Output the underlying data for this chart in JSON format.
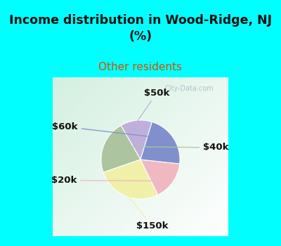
{
  "title": "Income distribution in Wood-Ridge, NJ\n(%)",
  "subtitle": "Other residents",
  "title_color": "#111111",
  "subtitle_color": "#cc5500",
  "bg_cyan": "#00ffff",
  "bg_chart_color": "#d4edd8",
  "slices": [
    {
      "label": "$50k",
      "value": 13,
      "color": "#c0aedd"
    },
    {
      "label": "$40k",
      "value": 22,
      "color": "#adc4a0"
    },
    {
      "label": "$150k",
      "value": 27,
      "color": "#f0f0a8"
    },
    {
      "label": "$20k",
      "value": 16,
      "color": "#f0b8c0"
    },
    {
      "label": "$60k",
      "value": 22,
      "color": "#8090cc"
    }
  ],
  "label_fontsize": 9.5,
  "label_color": "#111111",
  "label_fontweight": "bold",
  "watermark": "City-Data.com",
  "startangle": 73
}
